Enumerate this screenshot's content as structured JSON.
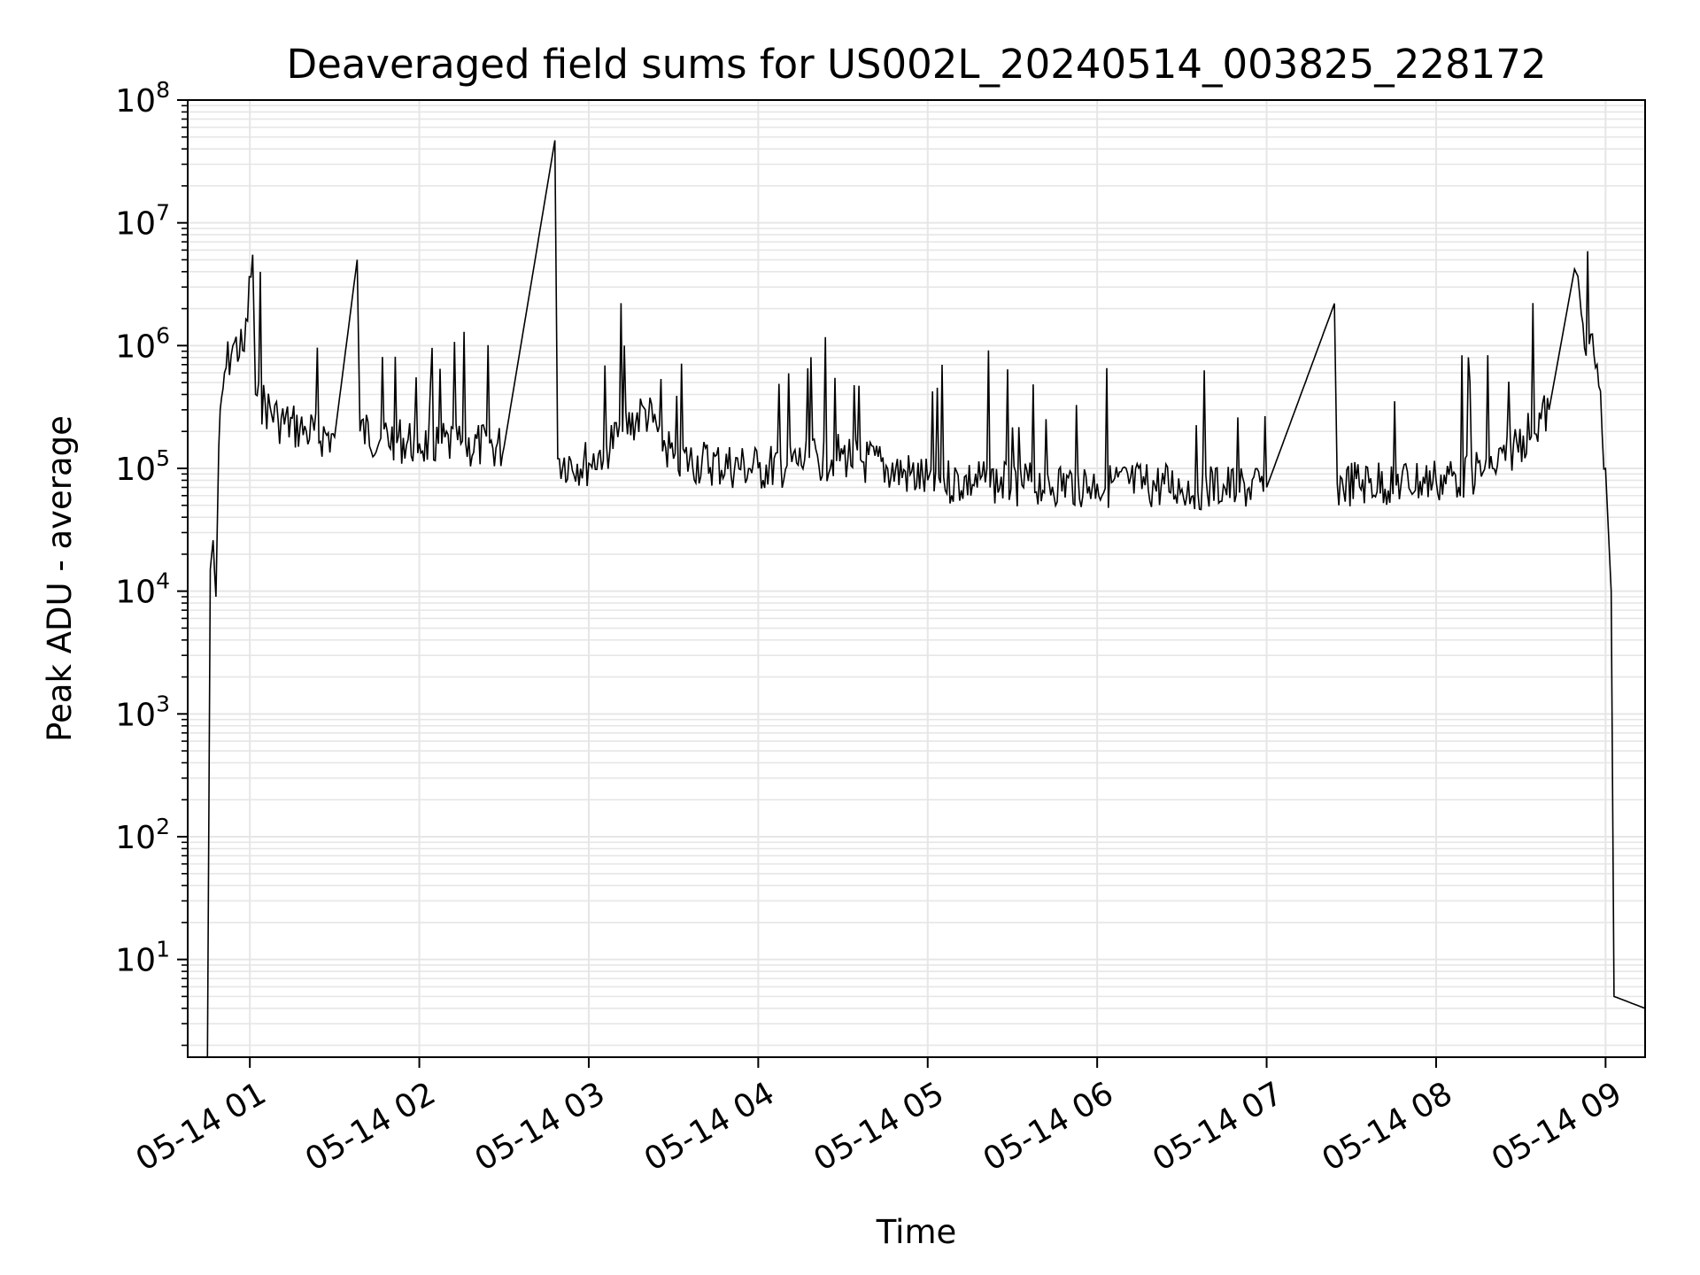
{
  "chart_data": {
    "type": "line",
    "title": "Deaveraged field sums for US002L_20240514_003825_228172",
    "xlabel": "Time",
    "ylabel": "Peak ADU - average",
    "yscale": "log",
    "xlim": [
      "05-14 00:38",
      "05-14 09:14"
    ],
    "ylim": [
      1.6,
      100000000
    ],
    "grid": true,
    "line_color": "#000000",
    "grid_color": "#e6e6e6",
    "x_ticks": [
      "05-14 01",
      "05-14 02",
      "05-14 03",
      "05-14 04",
      "05-14 05",
      "05-14 06",
      "05-14 07",
      "05-14 08",
      "05-14 09"
    ],
    "y_ticks": [
      {
        "base": "10",
        "exp": "1",
        "value": 10
      },
      {
        "base": "10",
        "exp": "2",
        "value": 100
      },
      {
        "base": "10",
        "exp": "3",
        "value": 1000
      },
      {
        "base": "10",
        "exp": "4",
        "value": 10000
      },
      {
        "base": "10",
        "exp": "5",
        "value": 100000
      },
      {
        "base": "10",
        "exp": "6",
        "value": 1000000
      },
      {
        "base": "10",
        "exp": "7",
        "value": 10000000
      },
      {
        "base": "10",
        "exp": "8",
        "value": 100000000
      }
    ],
    "series": [
      {
        "points": [
          {
            "t": "05-14 00:45",
            "y": 1.6
          },
          {
            "t": "05-14 00:46",
            "y": 15000
          },
          {
            "t": "05-14 00:47",
            "y": 26000
          },
          {
            "t": "05-14 00:48",
            "y": 9000
          },
          {
            "t": "05-14 00:49",
            "y": 150000
          },
          {
            "t": "05-14 00:51",
            "y": 600000
          },
          {
            "t": "05-14 00:54",
            "y": 1000000
          },
          {
            "t": "05-14 00:58",
            "y": 900000
          },
          {
            "t": "05-14 01:01",
            "y": 5500000
          },
          {
            "t": "05-14 01:02",
            "y": 400000
          },
          {
            "t": "05-14 01:10",
            "y": 250000
          },
          {
            "t": "05-14 01:20",
            "y": 200000
          },
          {
            "t": "05-14 01:30",
            "y": 180000
          },
          {
            "t": "05-14 01:38",
            "y": 5000000
          },
          {
            "t": "05-14 01:39",
            "y": 200000
          },
          {
            "t": "05-14 02:00",
            "y": 160000
          },
          {
            "t": "05-14 02:30",
            "y": 150000
          },
          {
            "t": "05-14 02:48",
            "y": 47000000
          },
          {
            "t": "05-14 02:49",
            "y": 120000
          },
          {
            "t": "05-14 03:00",
            "y": 110000
          },
          {
            "t": "05-14 03:20",
            "y": 300000
          },
          {
            "t": "05-14 03:30",
            "y": 120000
          },
          {
            "t": "05-14 04:00",
            "y": 100000
          },
          {
            "t": "05-14 04:30",
            "y": 130000
          },
          {
            "t": "05-14 05:00",
            "y": 80000
          },
          {
            "t": "05-14 06:00",
            "y": 75000
          },
          {
            "t": "05-14 07:00",
            "y": 70000
          },
          {
            "t": "05-14 07:24",
            "y": 2200000
          },
          {
            "t": "05-14 07:25",
            "y": 75000
          },
          {
            "t": "05-14 08:00",
            "y": 80000
          },
          {
            "t": "05-14 08:20",
            "y": 100000
          },
          {
            "t": "05-14 08:40",
            "y": 300000
          },
          {
            "t": "05-14 08:49",
            "y": 4200000
          },
          {
            "t": "05-14 08:52",
            "y": 1500000
          },
          {
            "t": "05-14 08:57",
            "y": 700000
          },
          {
            "t": "05-14 09:00",
            "y": 100000
          },
          {
            "t": "05-14 09:02",
            "y": 10000
          },
          {
            "t": "05-14 09:03",
            "y": 5
          },
          {
            "t": "05-14 09:14",
            "y": 4
          }
        ]
      }
    ]
  }
}
